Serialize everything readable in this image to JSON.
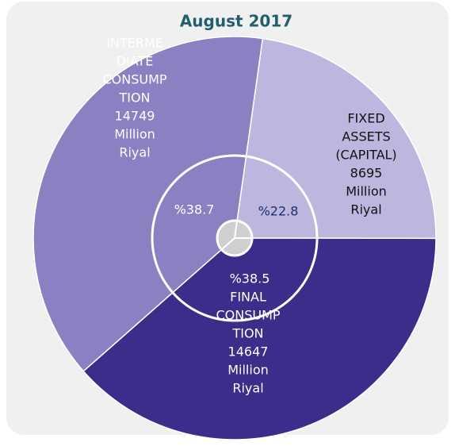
{
  "chart_data": {
    "type": "pie",
    "title": "August 2017",
    "label_lines": [
      [
        "FIXED",
        "ASSETS",
        "(CAPITAL)"
      ],
      [
        "FINAL",
        "CONSUMP",
        "TION"
      ],
      [
        "INTERME",
        "DIATE",
        "CONSUMP",
        "TION"
      ]
    ],
    "values": [
      22.8,
      38.5,
      38.7
    ],
    "value_labels": [
      "%22.8",
      "%38.5",
      "%38.7"
    ],
    "amounts": [
      8695,
      14647,
      14749
    ],
    "unit_lines": [
      "Million",
      "Riyal"
    ],
    "colors": [
      "#bdb6de",
      "#3b2e8a",
      "#8b80c1"
    ],
    "label_colors": [
      "#111111",
      "#ffffff",
      "#ffffff"
    ],
    "percent_colors": [
      "#1f2f6e",
      "#ffffff",
      "#ffffff"
    ]
  }
}
